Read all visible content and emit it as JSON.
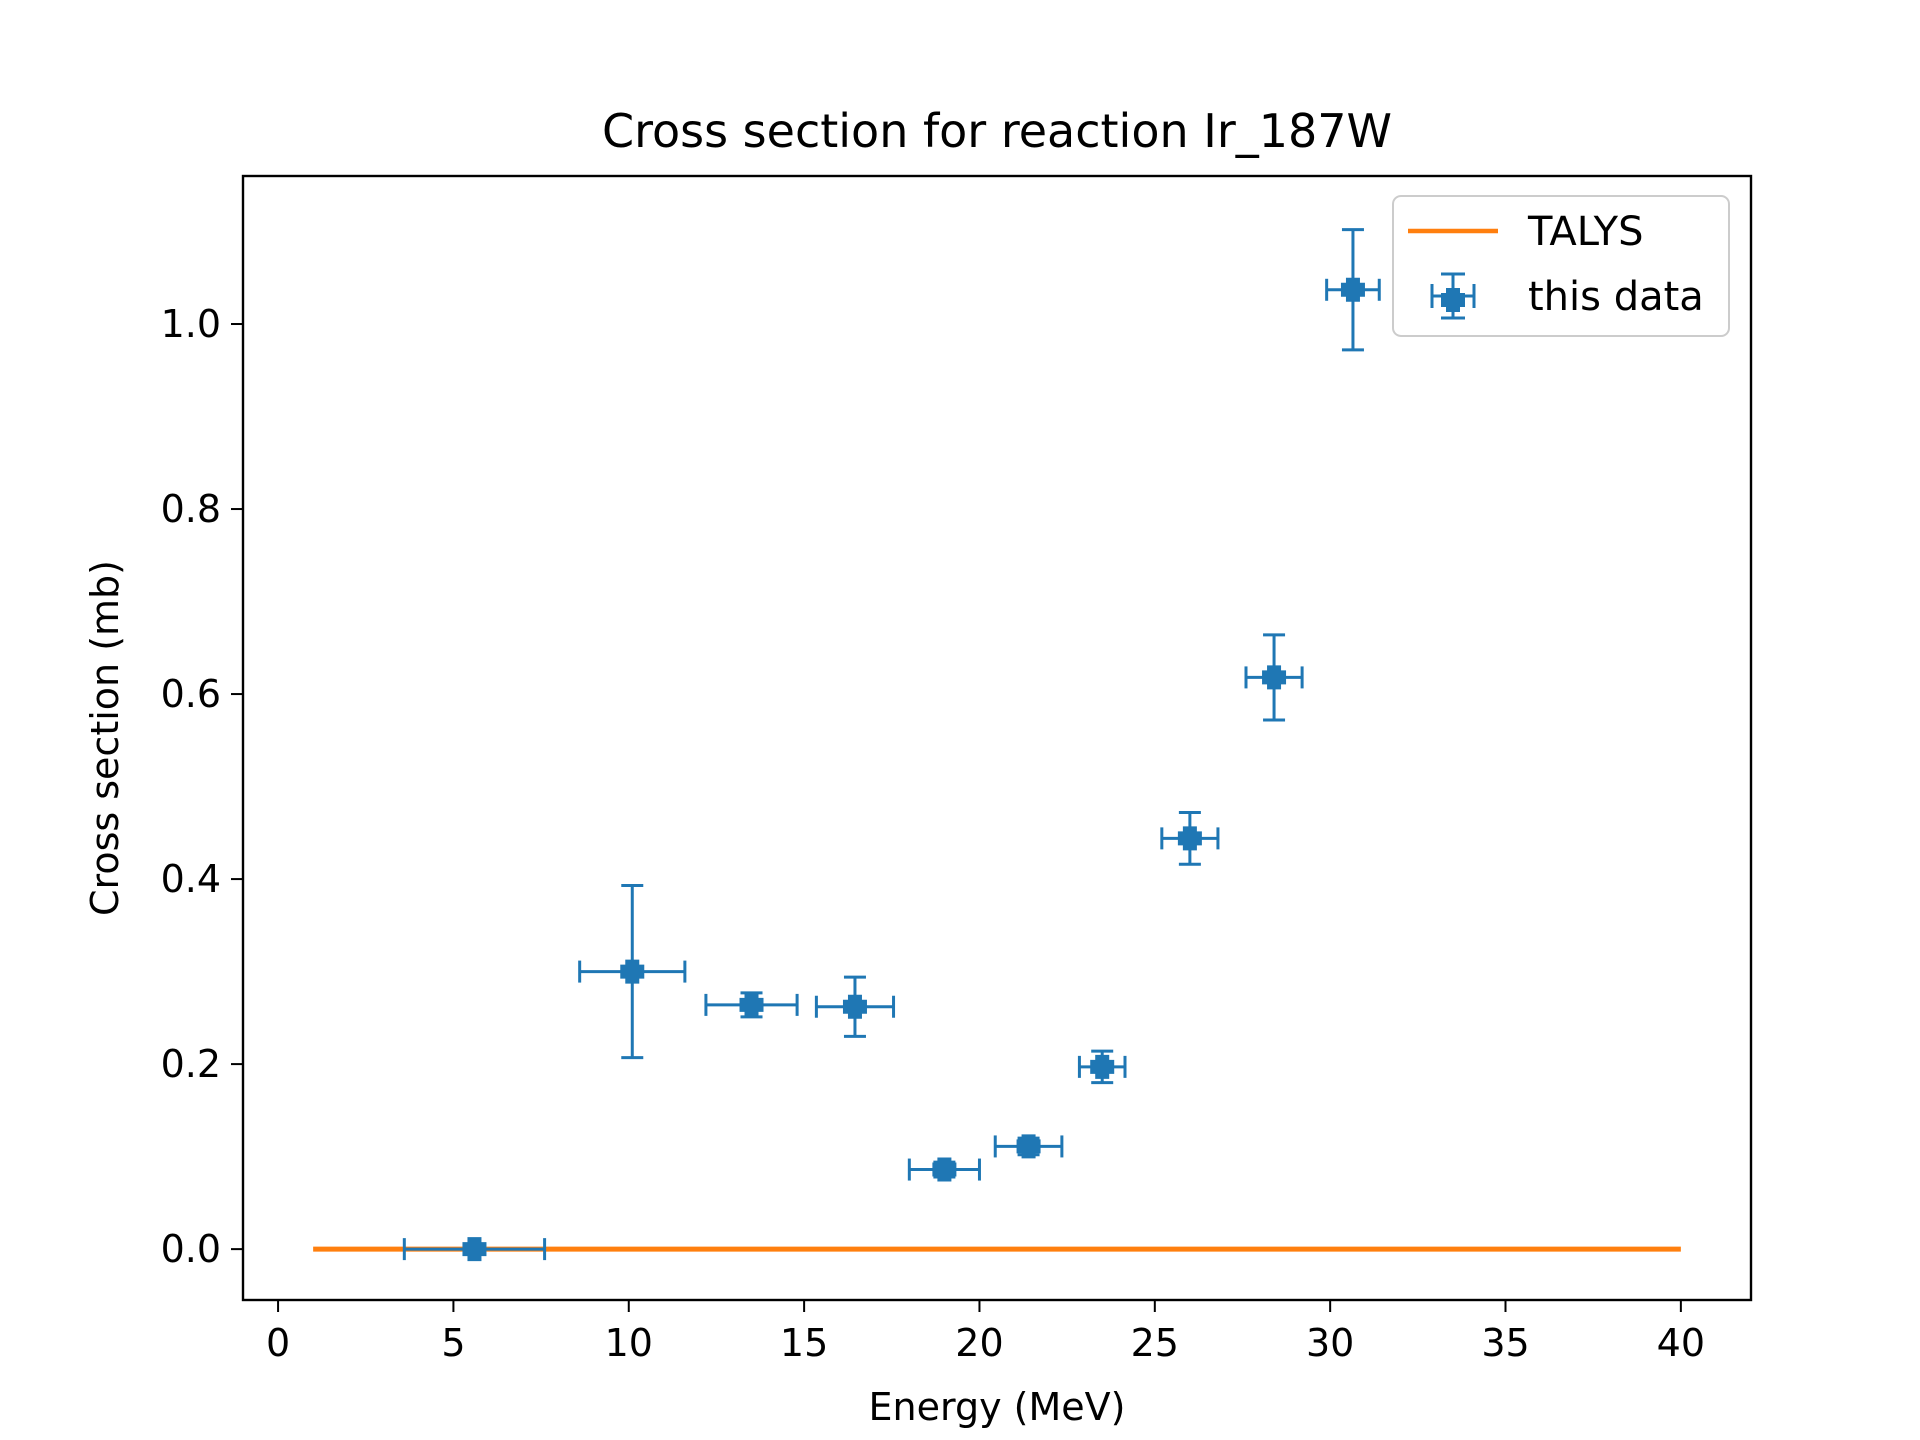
{
  "chart_data": {
    "type": "scatter",
    "title": "Cross section for reaction Ir_187W",
    "xlabel": "Energy (MeV)",
    "ylabel": "Cross section (mb)",
    "xlim": [
      -1,
      42
    ],
    "ylim": [
      -0.055,
      1.16
    ],
    "xticks": [
      0,
      5,
      10,
      15,
      20,
      25,
      30,
      35,
      40
    ],
    "yticks": [
      0.0,
      0.2,
      0.4,
      0.6,
      0.8,
      1.0
    ],
    "xtick_labels": [
      "0",
      "5",
      "10",
      "15",
      "20",
      "25",
      "30",
      "35",
      "40"
    ],
    "ytick_labels": [
      "0.0",
      "0.2",
      "0.4",
      "0.6",
      "0.8",
      "1.0"
    ],
    "grid": false,
    "legend_position": "top-right",
    "series": [
      {
        "name": "TALYS",
        "kind": "line",
        "color": "#ff7f0e",
        "x": [
          1,
          40
        ],
        "y": [
          0.0,
          0.0
        ]
      },
      {
        "name": "this data",
        "kind": "errorbar",
        "color": "#1f77b4",
        "points": [
          {
            "x": 5.6,
            "y": 0.0,
            "xerr": 2.0,
            "yerr": 0.0
          },
          {
            "x": 10.1,
            "y": 0.3,
            "xerr": 1.5,
            "yerr": 0.093
          },
          {
            "x": 13.5,
            "y": 0.264,
            "xerr": 1.3,
            "yerr": 0.013
          },
          {
            "x": 16.45,
            "y": 0.262,
            "xerr": 1.1,
            "yerr": 0.032
          },
          {
            "x": 19.0,
            "y": 0.086,
            "xerr": 1.0,
            "yerr": 0.008
          },
          {
            "x": 21.4,
            "y": 0.111,
            "xerr": 0.95,
            "yerr": 0.009
          },
          {
            "x": 23.5,
            "y": 0.197,
            "xerr": 0.65,
            "yerr": 0.017
          },
          {
            "x": 26.0,
            "y": 0.444,
            "xerr": 0.8,
            "yerr": 0.028
          },
          {
            "x": 28.4,
            "y": 0.618,
            "xerr": 0.8,
            "yerr": 0.046
          },
          {
            "x": 30.65,
            "y": 1.037,
            "xerr": 0.75,
            "yerr": 0.065
          }
        ]
      }
    ]
  }
}
